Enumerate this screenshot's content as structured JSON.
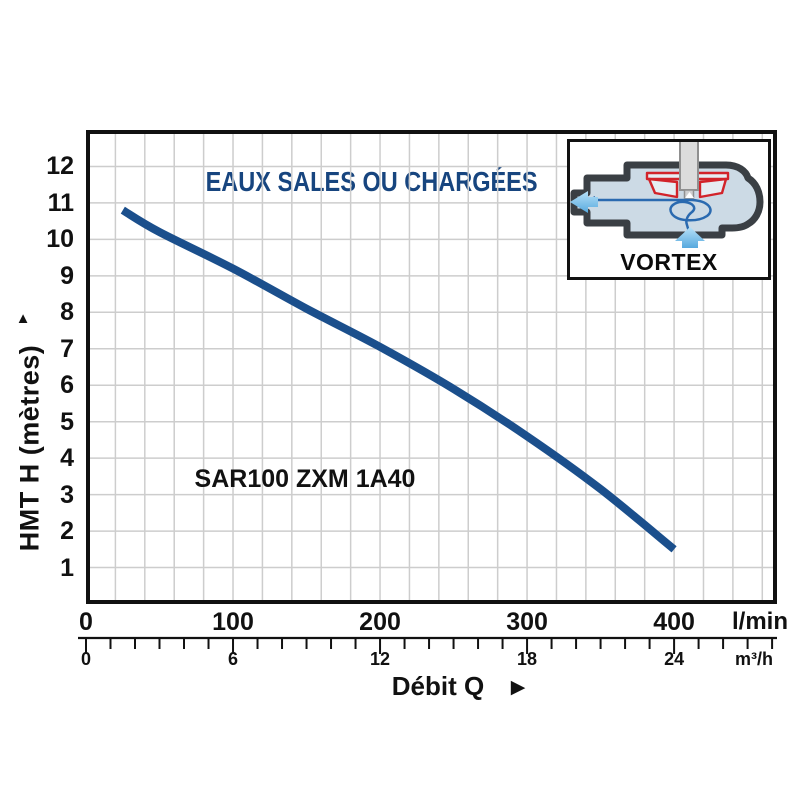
{
  "title": "EAUX SALES OU CHARGÉES",
  "curve_label": "SAR100 ZXM 1A40",
  "y_axis": {
    "title": "HMT H (mètres)",
    "arrow": "▲"
  },
  "x_axis": {
    "title": "Débit Q",
    "arrow": "▶",
    "unit_primary": "l/min",
    "unit_secondary": "m³/h"
  },
  "inset": {
    "label": "VORTEX"
  },
  "chart_data": {
    "type": "line",
    "title": "EAUX SALES OU CHARGÉES",
    "xlabel": "Débit Q",
    "ylabel": "HMT H (mètres)",
    "x_unit_primary": "l/min",
    "x_unit_secondary": "m³/h",
    "xlim_lmin": [
      0,
      470
    ],
    "ylim_m": [
      0,
      13
    ],
    "x_ticks_lmin": [
      0,
      100,
      200,
      300,
      400
    ],
    "x_ticks_m3h": [
      0,
      6,
      12,
      18,
      24
    ],
    "m3h_minor_tick_step": 1,
    "m3h_axis_max": 28,
    "y_ticks_m": [
      1,
      2,
      3,
      4,
      5,
      6,
      7,
      8,
      9,
      10,
      11,
      12
    ],
    "grid": true,
    "grid_step_x_lmin": 20,
    "grid_step_y_m": 1,
    "series": [
      {
        "name": "SAR100 ZXM 1A40",
        "points_q_lmin": [
          25,
          50,
          100,
          150,
          200,
          250,
          300,
          350,
          400
        ],
        "points_h_m": [
          10.8,
          10.2,
          9.2,
          8.1,
          7.05,
          5.9,
          4.6,
          3.15,
          1.5
        ]
      }
    ],
    "colors": {
      "curve": "#1b4f8c",
      "title": "#17457f",
      "grid": "#cdcdcd",
      "frame": "#111111",
      "text": "#111111",
      "inset_casing": "#3a3f44",
      "inset_fluid": "#ccdae5",
      "inset_impeller_red": "#d2232a",
      "inset_flow_blue": "#2a6ab0",
      "inset_arrow_light": "#57a9de"
    }
  }
}
